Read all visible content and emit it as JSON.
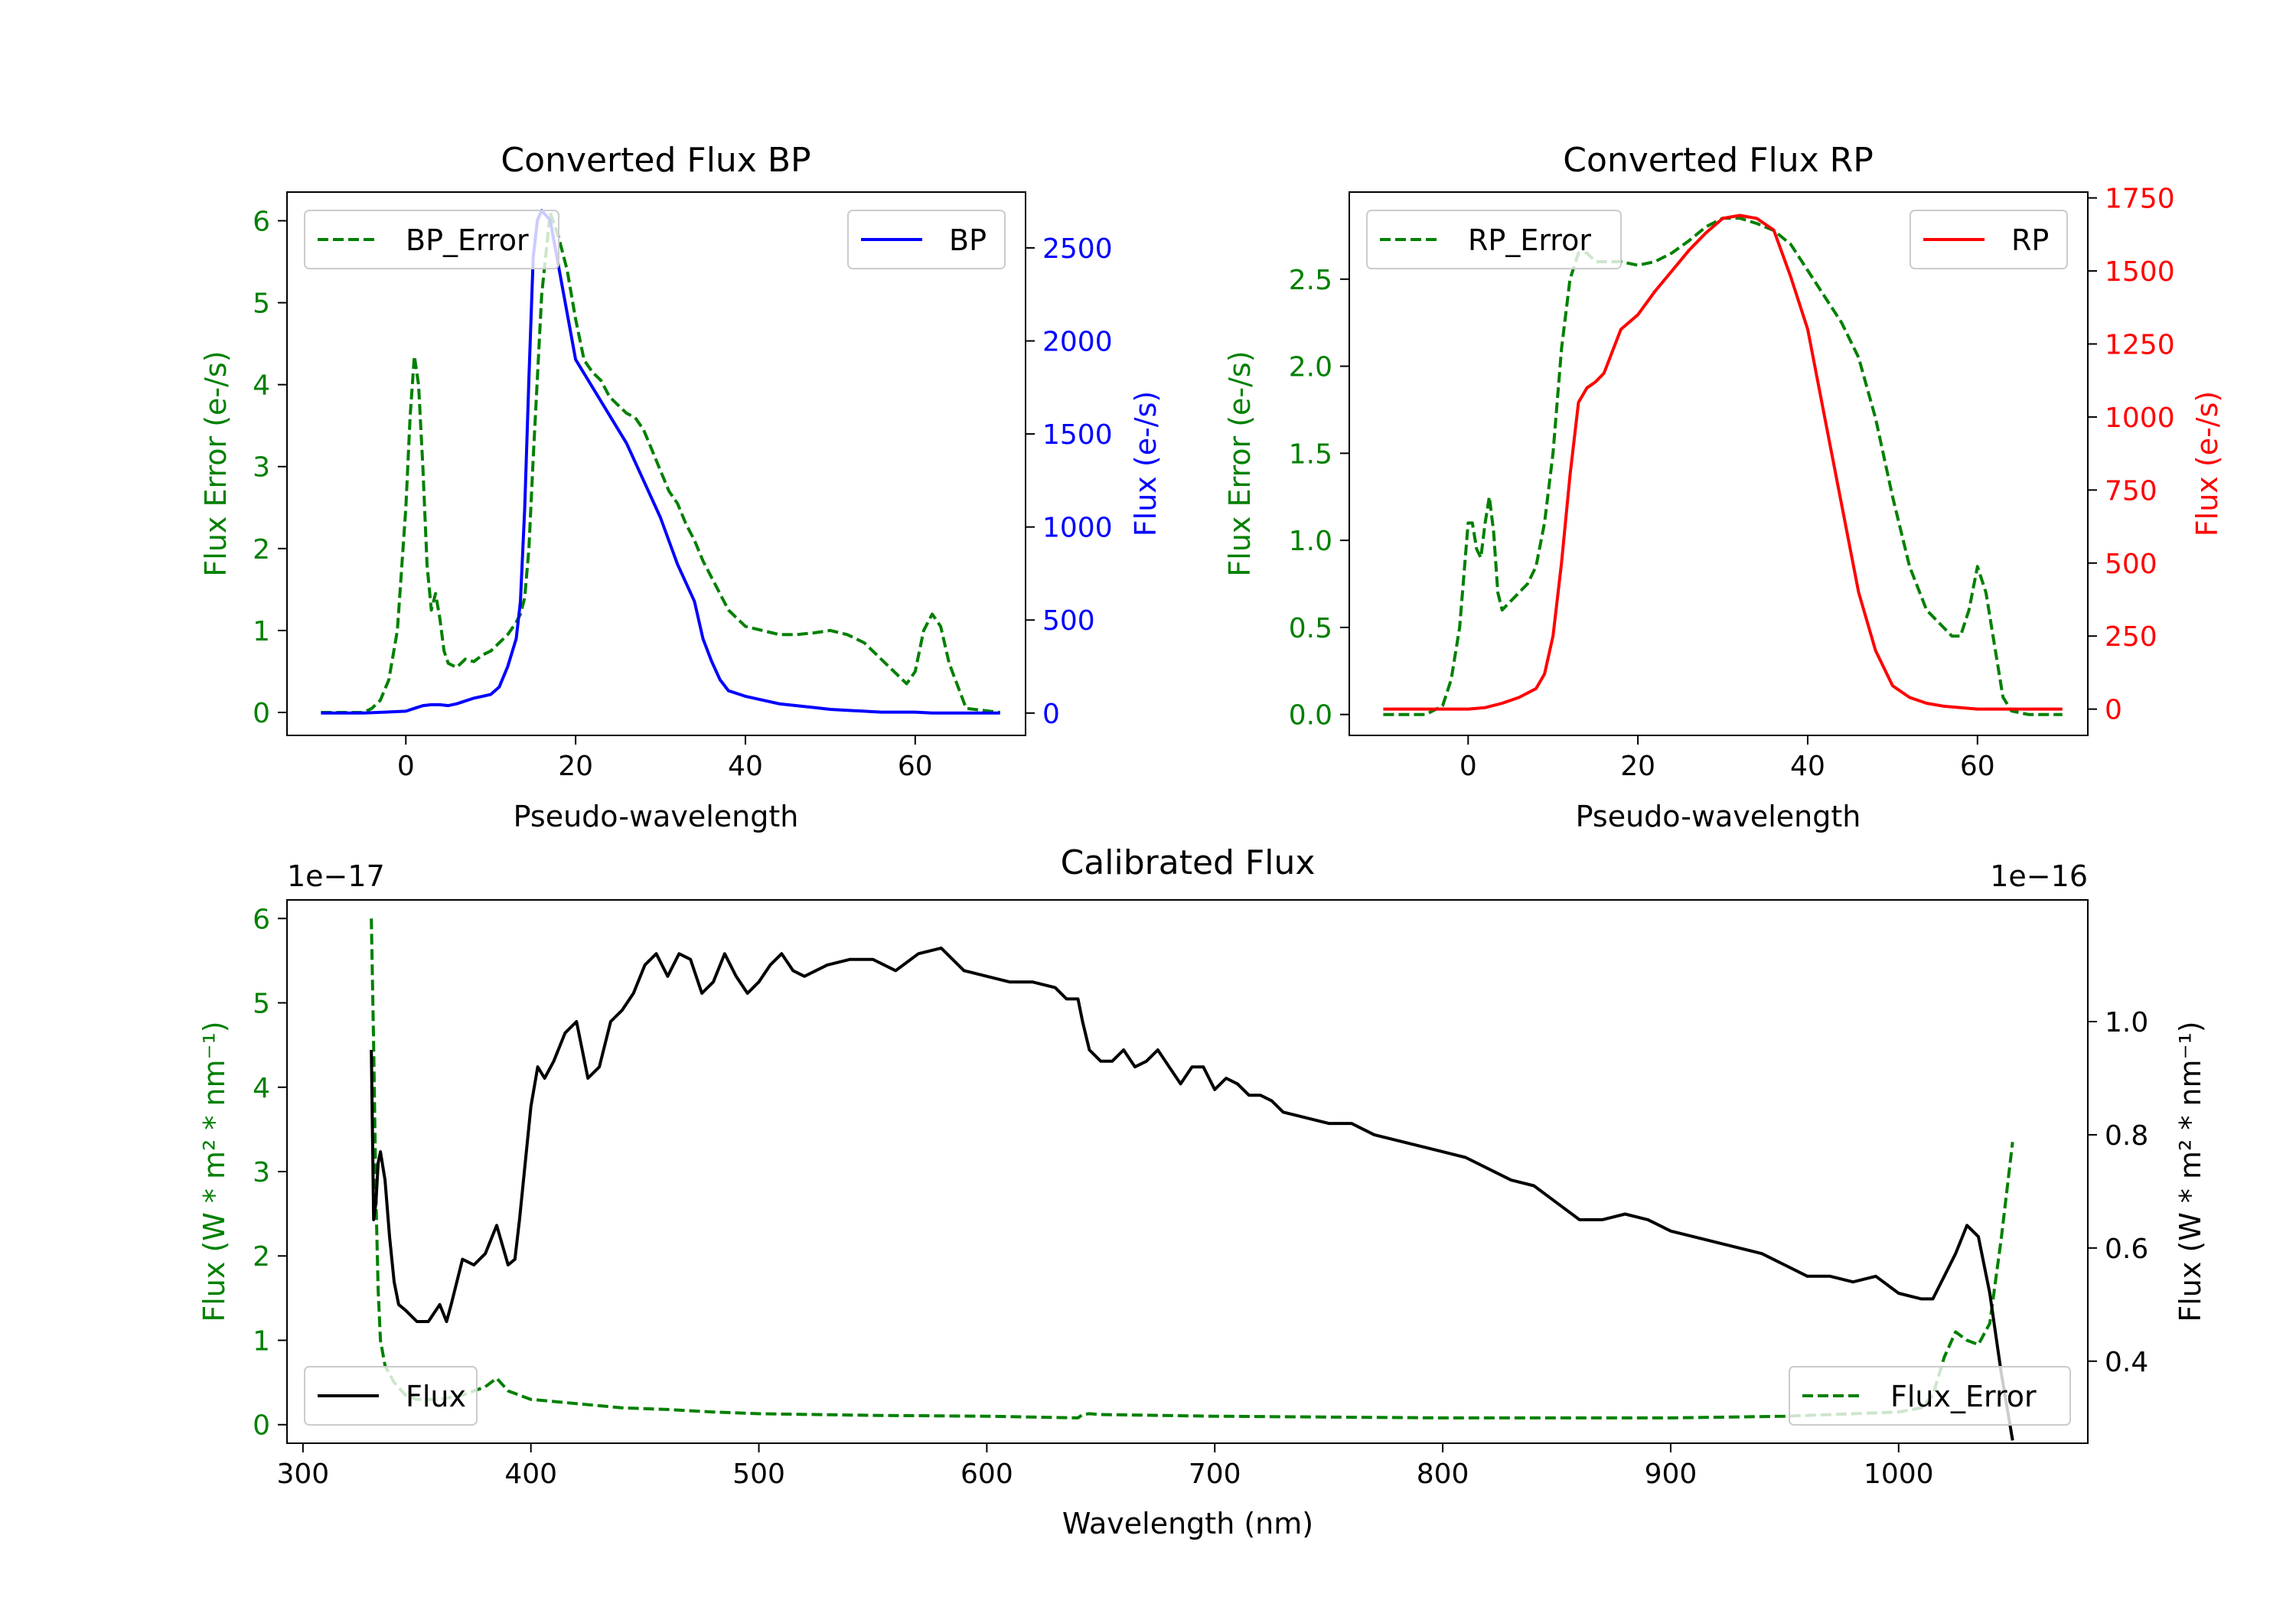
{
  "colors": {
    "bp": "#0000ff",
    "rp": "#ff0000",
    "error": "#008000",
    "flux": "#000000",
    "axis": "#000000",
    "background": "#ffffff"
  },
  "chart_data": [
    {
      "id": "bp",
      "type": "line",
      "title": "Converted Flux BP",
      "xlabel": "Pseudo-wavelength",
      "ylabel_left": "Flux Error (e-/s)",
      "ylabel_right": "Flux (e-/s)",
      "xlim": [
        -14,
        73
      ],
      "ylim_left": [
        -0.28,
        6.35
      ],
      "ylim_right": [
        -120,
        2800
      ],
      "xticks": [
        0,
        20,
        40,
        60
      ],
      "xtick_labels": [
        "0",
        "20",
        "40",
        "60"
      ],
      "yticks_left": [
        0,
        1,
        2,
        3,
        4,
        5,
        6
      ],
      "ytick_labels_left": [
        "0",
        "1",
        "2",
        "3",
        "4",
        "5",
        "6"
      ],
      "yticks_right": [
        0,
        500,
        1000,
        1500,
        2000,
        2500
      ],
      "ytick_labels_right": [
        "0",
        "500",
        "1000",
        "1500",
        "2000",
        "2500"
      ],
      "legend_left": {
        "label": "BP_Error",
        "position": "upper-left"
      },
      "legend_right": {
        "label": "BP",
        "position": "upper-right"
      },
      "series": [
        {
          "name": "BP_Error",
          "axis": "left",
          "style": "dashed",
          "color": "#008000",
          "x": [
            -10,
            -5,
            -4,
            -3,
            -2,
            -1,
            0,
            0.5,
            1,
            1.5,
            2,
            2.5,
            3,
            3.5,
            4,
            4.5,
            5,
            6,
            7,
            8,
            9,
            10,
            11,
            12,
            13,
            13.5,
            14,
            14.5,
            15,
            16,
            17,
            18,
            19,
            20,
            21,
            22,
            23,
            24,
            25,
            26,
            27,
            28,
            29,
            30,
            31,
            32,
            33,
            34,
            35,
            36,
            37,
            38,
            40,
            42,
            44,
            46,
            48,
            50,
            52,
            54,
            56,
            57,
            58,
            59,
            60,
            61,
            62,
            63,
            64,
            66,
            70
          ],
          "y": [
            0,
            0,
            0.05,
            0.15,
            0.4,
            1.0,
            2.5,
            3.6,
            4.35,
            4.0,
            3.0,
            1.8,
            1.25,
            1.45,
            1.15,
            0.75,
            0.6,
            0.55,
            0.65,
            0.62,
            0.7,
            0.75,
            0.85,
            0.95,
            1.1,
            1.2,
            1.4,
            2.0,
            3.1,
            5.1,
            6.1,
            5.8,
            5.4,
            4.8,
            4.3,
            4.15,
            4.05,
            3.85,
            3.75,
            3.65,
            3.6,
            3.45,
            3.2,
            2.95,
            2.7,
            2.55,
            2.3,
            2.1,
            1.85,
            1.65,
            1.45,
            1.25,
            1.05,
            1.0,
            0.95,
            0.95,
            0.97,
            1.0,
            0.95,
            0.85,
            0.65,
            0.55,
            0.45,
            0.35,
            0.5,
            1.0,
            1.2,
            1.05,
            0.6,
            0.05,
            0
          ]
        },
        {
          "name": "BP",
          "axis": "right",
          "style": "solid",
          "color": "#0000ff",
          "x": [
            -10,
            -5,
            0,
            1,
            2,
            3,
            4,
            5,
            6,
            8,
            10,
            11,
            12,
            13,
            13.5,
            14,
            14.5,
            15,
            15.5,
            16,
            17,
            18,
            19,
            20,
            22,
            24,
            26,
            28,
            30,
            32,
            34,
            35,
            36,
            37,
            38,
            40,
            42,
            44,
            46,
            48,
            50,
            52,
            54,
            56,
            58,
            60,
            62,
            64,
            66,
            70
          ],
          "y": [
            0,
            0,
            10,
            25,
            40,
            45,
            45,
            40,
            50,
            80,
            100,
            140,
            250,
            400,
            600,
            1100,
            1800,
            2450,
            2650,
            2700,
            2650,
            2400,
            2150,
            1900,
            1750,
            1600,
            1450,
            1250,
            1050,
            800,
            600,
            400,
            280,
            180,
            120,
            90,
            70,
            50,
            40,
            30,
            20,
            15,
            10,
            5,
            5,
            5,
            0,
            0,
            0,
            0
          ]
        }
      ]
    },
    {
      "id": "rp",
      "type": "line",
      "title": "Converted Flux RP",
      "xlabel": "Pseudo-wavelength",
      "ylabel_left": "Flux Error (e-/s)",
      "ylabel_right": "Flux (e-/s)",
      "xlim": [
        -14,
        73
      ],
      "ylim_left": [
        -0.12,
        3.0
      ],
      "ylim_right": [
        -90,
        1770
      ],
      "xticks": [
        0,
        20,
        40,
        60
      ],
      "xtick_labels": [
        "0",
        "20",
        "40",
        "60"
      ],
      "yticks_left": [
        0.0,
        0.5,
        1.0,
        1.5,
        2.0,
        2.5
      ],
      "ytick_labels_left": [
        "0.0",
        "0.5",
        "1.0",
        "1.5",
        "2.0",
        "2.5"
      ],
      "yticks_right": [
        0,
        250,
        500,
        750,
        1000,
        1250,
        1500,
        1750
      ],
      "ytick_labels_right": [
        "0",
        "250",
        "500",
        "750",
        "1000",
        "1250",
        "1500",
        "1750"
      ],
      "legend_left": {
        "label": "RP_Error",
        "position": "upper-left"
      },
      "legend_right": {
        "label": "RP",
        "position": "upper-right"
      },
      "series": [
        {
          "name": "RP_Error",
          "axis": "left",
          "style": "dashed",
          "color": "#008000",
          "x": [
            -10,
            -5,
            -3,
            -2,
            -1,
            0,
            0.5,
            1,
            1.5,
            2,
            2.5,
            3,
            3.5,
            4,
            5,
            6,
            7,
            8,
            9,
            10,
            11,
            12,
            13,
            14,
            15,
            16,
            18,
            20,
            22,
            24,
            26,
            28,
            30,
            32,
            34,
            36,
            38,
            40,
            42,
            44,
            46,
            48,
            50,
            52,
            54,
            56,
            57,
            58,
            59,
            60,
            61,
            62,
            63,
            64,
            66,
            70
          ],
          "y": [
            0,
            0,
            0.05,
            0.2,
            0.5,
            1.1,
            1.1,
            0.95,
            0.9,
            1.1,
            1.25,
            1.05,
            0.7,
            0.6,
            0.65,
            0.7,
            0.75,
            0.85,
            1.1,
            1.5,
            2.1,
            2.5,
            2.65,
            2.65,
            2.6,
            2.6,
            2.6,
            2.58,
            2.6,
            2.65,
            2.72,
            2.8,
            2.85,
            2.85,
            2.82,
            2.78,
            2.7,
            2.55,
            2.4,
            2.25,
            2.05,
            1.7,
            1.25,
            0.85,
            0.6,
            0.5,
            0.45,
            0.45,
            0.6,
            0.85,
            0.7,
            0.4,
            0.1,
            0.02,
            0,
            0
          ]
        },
        {
          "name": "RP",
          "axis": "right",
          "style": "solid",
          "color": "#ff0000",
          "x": [
            -10,
            -5,
            0,
            2,
            4,
            6,
            8,
            9,
            10,
            11,
            12,
            13,
            14,
            15,
            16,
            18,
            20,
            22,
            24,
            26,
            28,
            30,
            32,
            34,
            36,
            38,
            40,
            42,
            44,
            46,
            48,
            50,
            52,
            54,
            56,
            58,
            60,
            62,
            64,
            66,
            70
          ],
          "y": [
            0,
            0,
            0,
            5,
            20,
            40,
            70,
            120,
            250,
            500,
            800,
            1050,
            1100,
            1120,
            1150,
            1300,
            1350,
            1430,
            1500,
            1570,
            1630,
            1680,
            1690,
            1680,
            1640,
            1480,
            1300,
            1000,
            700,
            400,
            200,
            80,
            40,
            20,
            10,
            5,
            0,
            0,
            0,
            0,
            0
          ]
        }
      ]
    },
    {
      "id": "calibrated",
      "type": "line",
      "title": "Calibrated Flux",
      "xlabel": "Wavelength (nm)",
      "ylabel_left": "Flux (W * m² * nm⁻¹)",
      "ylabel_right": "Flux (W * m² * nm⁻¹)",
      "scale_left": "1e−17",
      "scale_right": "1e−16",
      "xlim": [
        293,
        1083
      ],
      "ylim_left": [
        -0.22,
        6.22
      ],
      "ylim_right": [
        0.255,
        1.215
      ],
      "xticks": [
        300,
        400,
        500,
        600,
        700,
        800,
        900,
        1000
      ],
      "xtick_labels": [
        "300",
        "400",
        "500",
        "600",
        "700",
        "800",
        "900",
        "1000"
      ],
      "yticks_left": [
        0,
        1,
        2,
        3,
        4,
        5,
        6
      ],
      "ytick_labels_left": [
        "0",
        "1",
        "2",
        "3",
        "4",
        "5",
        "6"
      ],
      "yticks_right": [
        0.4,
        0.6,
        0.8,
        1.0
      ],
      "ytick_labels_right": [
        "0.4",
        "0.6",
        "0.8",
        "1.0"
      ],
      "legend_left": {
        "label": "Flux",
        "position": "lower-left"
      },
      "legend_right": {
        "label": "Flux_Error",
        "position": "lower-right"
      },
      "series": [
        {
          "name": "Flux_Error",
          "axis": "left",
          "style": "dashed",
          "color": "#008000",
          "x": [
            330,
            331,
            332,
            333,
            334,
            336,
            340,
            345,
            350,
            360,
            370,
            380,
            385,
            390,
            400,
            420,
            440,
            460,
            480,
            500,
            550,
            600,
            640,
            642,
            645,
            650,
            700,
            800,
            900,
            950,
            1000,
            1010,
            1015,
            1020,
            1025,
            1030,
            1035,
            1040,
            1045,
            1050
          ],
          "y": [
            6.0,
            4.5,
            2.7,
            1.6,
            1.0,
            0.7,
            0.5,
            0.35,
            0.3,
            0.3,
            0.35,
            0.45,
            0.55,
            0.4,
            0.3,
            0.25,
            0.2,
            0.18,
            0.15,
            0.13,
            0.11,
            0.1,
            0.08,
            0.12,
            0.13,
            0.12,
            0.1,
            0.08,
            0.08,
            0.1,
            0.15,
            0.2,
            0.35,
            0.8,
            1.1,
            1.0,
            0.95,
            1.2,
            2.2,
            3.35
          ]
        },
        {
          "name": "Flux",
          "axis": "right",
          "style": "solid",
          "color": "#000000",
          "x": [
            330,
            331,
            332,
            333,
            334,
            336,
            338,
            340,
            342,
            345,
            350,
            355,
            360,
            363,
            365,
            370,
            375,
            380,
            385,
            390,
            393,
            395,
            400,
            403,
            406,
            410,
            415,
            420,
            425,
            430,
            435,
            440,
            445,
            450,
            455,
            460,
            465,
            470,
            475,
            480,
            485,
            490,
            495,
            500,
            505,
            510,
            515,
            520,
            530,
            540,
            550,
            560,
            570,
            580,
            590,
            600,
            610,
            620,
            630,
            635,
            640,
            642,
            645,
            650,
            655,
            660,
            665,
            670,
            675,
            680,
            685,
            690,
            695,
            700,
            705,
            710,
            715,
            720,
            725,
            730,
            740,
            750,
            760,
            770,
            780,
            790,
            800,
            810,
            820,
            830,
            840,
            850,
            860,
            870,
            880,
            890,
            900,
            910,
            920,
            930,
            940,
            950,
            960,
            970,
            980,
            990,
            1000,
            1010,
            1015,
            1020,
            1025,
            1030,
            1035,
            1040,
            1045,
            1050
          ],
          "y": [
            0.95,
            0.65,
            0.68,
            0.75,
            0.77,
            0.72,
            0.62,
            0.54,
            0.5,
            0.49,
            0.47,
            0.47,
            0.5,
            0.47,
            0.5,
            0.58,
            0.57,
            0.59,
            0.64,
            0.57,
            0.58,
            0.65,
            0.85,
            0.92,
            0.9,
            0.93,
            0.98,
            1.0,
            0.9,
            0.92,
            1.0,
            1.02,
            1.05,
            1.1,
            1.12,
            1.08,
            1.12,
            1.11,
            1.05,
            1.07,
            1.12,
            1.08,
            1.05,
            1.07,
            1.1,
            1.12,
            1.09,
            1.08,
            1.1,
            1.11,
            1.11,
            1.09,
            1.12,
            1.13,
            1.09,
            1.08,
            1.07,
            1.07,
            1.06,
            1.04,
            1.04,
            1.0,
            0.95,
            0.93,
            0.93,
            0.95,
            0.92,
            0.93,
            0.95,
            0.92,
            0.89,
            0.92,
            0.92,
            0.88,
            0.9,
            0.89,
            0.87,
            0.87,
            0.86,
            0.84,
            0.83,
            0.82,
            0.82,
            0.8,
            0.79,
            0.78,
            0.77,
            0.76,
            0.74,
            0.72,
            0.71,
            0.68,
            0.65,
            0.65,
            0.66,
            0.65,
            0.63,
            0.62,
            0.61,
            0.6,
            0.59,
            0.57,
            0.55,
            0.55,
            0.54,
            0.55,
            0.52,
            0.51,
            0.51,
            0.55,
            0.59,
            0.64,
            0.62,
            0.52,
            0.38,
            0.26
          ]
        }
      ]
    }
  ]
}
